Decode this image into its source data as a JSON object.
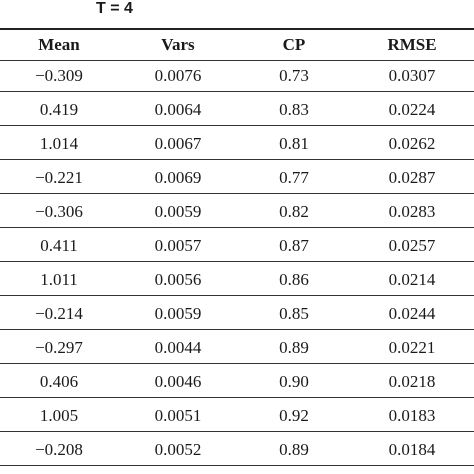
{
  "title": "T = 4",
  "columns": [
    "Mean",
    "Vars",
    "CP",
    "RMSE"
  ],
  "rows": [
    [
      "−0.309",
      "0.0076",
      "0.73",
      "0.0307"
    ],
    [
      "0.419",
      "0.0064",
      "0.83",
      "0.0224"
    ],
    [
      "1.014",
      "0.0067",
      "0.81",
      "0.0262"
    ],
    [
      "−0.221",
      "0.0069",
      "0.77",
      "0.0287"
    ],
    [
      "−0.306",
      "0.0059",
      "0.82",
      "0.0283"
    ],
    [
      "0.411",
      "0.0057",
      "0.87",
      "0.0257"
    ],
    [
      "1.011",
      "0.0056",
      "0.86",
      "0.0214"
    ],
    [
      "−0.214",
      "0.0059",
      "0.85",
      "0.0244"
    ],
    [
      "−0.297",
      "0.0044",
      "0.89",
      "0.0221"
    ],
    [
      "0.406",
      "0.0046",
      "0.90",
      "0.0218"
    ],
    [
      "1.005",
      "0.0051",
      "0.92",
      "0.0183"
    ],
    [
      "−0.208",
      "0.0052",
      "0.89",
      "0.0184"
    ]
  ]
}
